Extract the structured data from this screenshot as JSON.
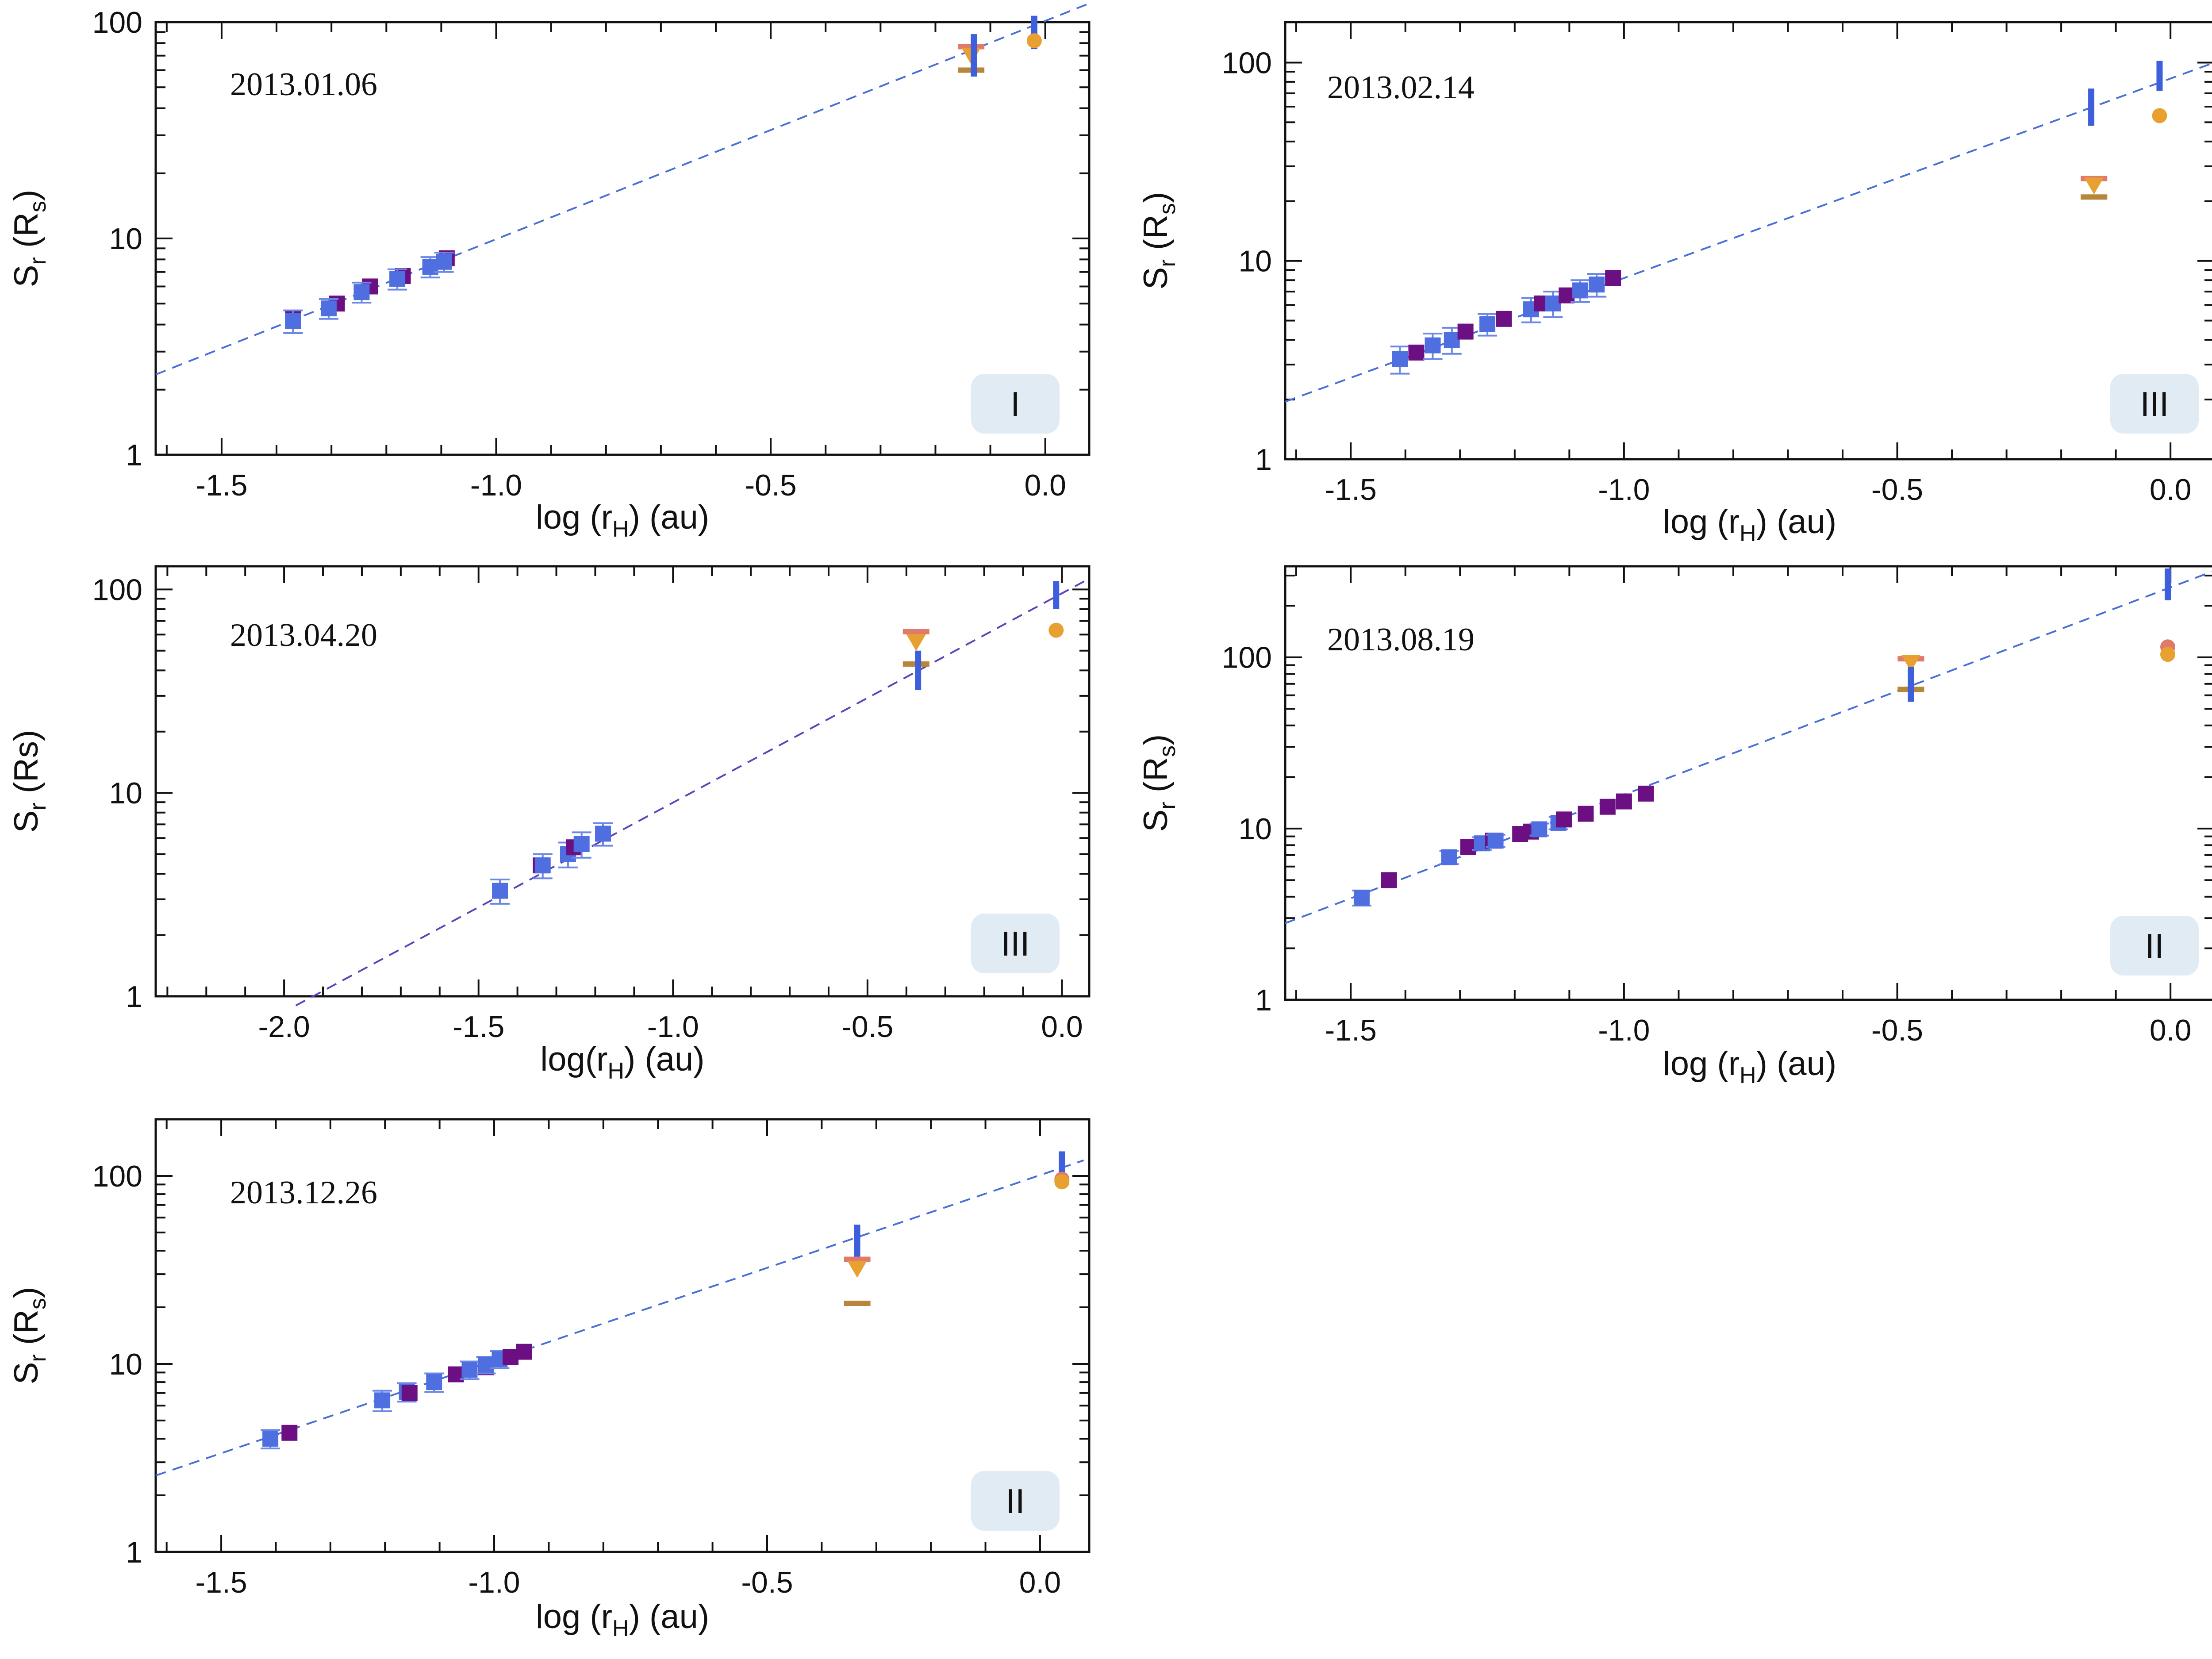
{
  "colors": {
    "fit": "#4a6fd6",
    "fit_dark": "#5b46b8",
    "blue_square": "#4f6fe0",
    "purple_square": "#6b0f82",
    "error_bar": "#6b88e6",
    "vertical_bar": "#3e5fdc",
    "orange": "#e8a030",
    "salmon": "#e07a6a",
    "brown": "#b8863a",
    "badge_bg": "#e1ebf4"
  },
  "chart_data": [
    {
      "type": "scatter",
      "id": "p1",
      "title": "2013.01.06",
      "badge": "I",
      "xlabel": "log (r",
      "xlabel_sub": "H",
      "xlabel_tail": ") (au)",
      "ylabel": "S",
      "ylabel_sub": "r",
      "ylabel_tail": " (R",
      "ylabel_sub2": "s",
      "ylabel_end": ")",
      "xlim": [
        -1.62,
        0.08
      ],
      "ylim": [
        1,
        100
      ],
      "yscale": "log",
      "xticks": [
        {
          "v": -1.5,
          "label": "-1.5"
        },
        {
          "v": -1.0,
          "label": "-1.0"
        },
        {
          "v": -0.5,
          "label": "-0.5"
        },
        {
          "v": 0.0,
          "label": "0.0"
        }
      ],
      "yticks": [
        {
          "v": 1,
          "label": "1"
        },
        {
          "v": 10,
          "label": "10"
        },
        {
          "v": 100,
          "label": "100"
        }
      ],
      "fit": {
        "x": [
          -1.62,
          0.08
        ],
        "y": [
          2.35,
          122
        ],
        "style": "light"
      },
      "points": [
        {
          "kind": "purple-square",
          "x": -1.37,
          "y": 4.3
        },
        {
          "kind": "blue-square",
          "x": -1.37,
          "y": 4.15,
          "err": 0.5
        },
        {
          "kind": "purple-square",
          "x": -1.29,
          "y": 5.0
        },
        {
          "kind": "blue-square",
          "x": -1.305,
          "y": 4.75,
          "err": 0.5
        },
        {
          "kind": "purple-square",
          "x": -1.23,
          "y": 6.0
        },
        {
          "kind": "blue-square",
          "x": -1.245,
          "y": 5.65,
          "err": 0.6
        },
        {
          "kind": "purple-square",
          "x": -1.17,
          "y": 6.7
        },
        {
          "kind": "blue-square",
          "x": -1.18,
          "y": 6.5,
          "err": 0.7
        },
        {
          "kind": "purple-square",
          "x": -1.09,
          "y": 8.1
        },
        {
          "kind": "blue-square",
          "x": -1.12,
          "y": 7.4,
          "err": 0.8
        },
        {
          "kind": "blue-square",
          "x": -1.095,
          "y": 7.8,
          "err": 0.8
        },
        {
          "kind": "salmon-bar",
          "x": -0.135,
          "y": 77
        },
        {
          "kind": "orange-down",
          "x": -0.135,
          "y": 70
        },
        {
          "kind": "brown-bar",
          "x": -0.135,
          "y": 60
        },
        {
          "kind": "vbar",
          "x": -0.13,
          "y0": 56,
          "y1": 88
        },
        {
          "kind": "vbar",
          "x": -0.02,
          "y0": 75,
          "y1": 107
        },
        {
          "kind": "orange-dot",
          "x": -0.02,
          "y": 82
        }
      ]
    },
    {
      "type": "scatter",
      "id": "p2",
      "title": "2013.02.14",
      "badge": "III",
      "xlabel": "log (r",
      "xlabel_sub": "H",
      "xlabel_tail": ") (au)",
      "ylabel": "S",
      "ylabel_sub": "r",
      "ylabel_tail": " (R",
      "ylabel_sub2": "s",
      "ylabel_end": ")",
      "xlim": [
        -1.62,
        0.08
      ],
      "ylim": [
        1,
        160
      ],
      "yscale": "log",
      "xticks": [
        {
          "v": -1.5,
          "label": "-1.5"
        },
        {
          "v": -1.0,
          "label": "-1.0"
        },
        {
          "v": -0.5,
          "label": "-0.5"
        },
        {
          "v": 0.0,
          "label": "0.0"
        }
      ],
      "yticks": [
        {
          "v": 1,
          "label": "1"
        },
        {
          "v": 10,
          "label": "10"
        },
        {
          "v": 100,
          "label": "100"
        }
      ],
      "fit": {
        "x": [
          -1.62,
          0.08
        ],
        "y": [
          1.95,
          100
        ],
        "style": "light"
      },
      "points": [
        {
          "kind": "blue-square",
          "x": -1.41,
          "y": 3.2,
          "err": 0.5
        },
        {
          "kind": "purple-square",
          "x": -1.38,
          "y": 3.45
        },
        {
          "kind": "blue-square",
          "x": -1.35,
          "y": 3.75,
          "err": 0.55
        },
        {
          "kind": "blue-square",
          "x": -1.315,
          "y": 4.0,
          "err": 0.6
        },
        {
          "kind": "purple-square",
          "x": -1.29,
          "y": 4.4
        },
        {
          "kind": "blue-square",
          "x": -1.25,
          "y": 4.8,
          "err": 0.6
        },
        {
          "kind": "purple-square",
          "x": -1.22,
          "y": 5.1
        },
        {
          "kind": "blue-square",
          "x": -1.17,
          "y": 5.7,
          "err": 0.8
        },
        {
          "kind": "purple-square",
          "x": -1.15,
          "y": 6.1
        },
        {
          "kind": "blue-square",
          "x": -1.13,
          "y": 6.1,
          "err": 0.9
        },
        {
          "kind": "purple-square",
          "x": -1.105,
          "y": 6.7
        },
        {
          "kind": "blue-square",
          "x": -1.08,
          "y": 7.1,
          "err": 0.9
        },
        {
          "kind": "blue-square",
          "x": -1.05,
          "y": 7.6,
          "err": 1.0
        },
        {
          "kind": "purple-square",
          "x": -1.02,
          "y": 8.2
        },
        {
          "kind": "vbar",
          "x": -0.145,
          "y0": 48,
          "y1": 74
        },
        {
          "kind": "salmon-bar",
          "x": -0.14,
          "y": 26
        },
        {
          "kind": "orange-down",
          "x": -0.14,
          "y": 24
        },
        {
          "kind": "brown-bar",
          "x": -0.14,
          "y": 21
        },
        {
          "kind": "vbar",
          "x": -0.02,
          "y0": 72,
          "y1": 102
        },
        {
          "kind": "orange-dot",
          "x": -0.02,
          "y": 54
        }
      ]
    },
    {
      "type": "scatter",
      "id": "p3",
      "title": "2013.04.20",
      "badge": "III",
      "xlabel": "log(r",
      "xlabel_sub": "H",
      "xlabel_tail": ") (au)",
      "ylabel": "S",
      "ylabel_sub": "r",
      "ylabel_tail": " (Rs)",
      "ylabel_sub2": "",
      "ylabel_end": "",
      "xlim": [
        -2.33,
        0.07
      ],
      "ylim": [
        1,
        130
      ],
      "yscale": "log",
      "xticks": [
        {
          "v": -2.0,
          "label": "-2.0"
        },
        {
          "v": -1.5,
          "label": "-1.5"
        },
        {
          "v": -1.0,
          "label": "-1.0"
        },
        {
          "v": -0.5,
          "label": "-0.5"
        },
        {
          "v": 0.0,
          "label": "0.0"
        }
      ],
      "yticks": [
        {
          "v": 1,
          "label": "1"
        },
        {
          "v": 10,
          "label": "10"
        },
        {
          "v": 100,
          "label": "100"
        }
      ],
      "fit": {
        "x": [
          -1.97,
          0.07
        ],
        "y": [
          0.9,
          113
        ],
        "style": "dark"
      },
      "points": [
        {
          "kind": "blue-square",
          "x": -1.445,
          "y": 3.3,
          "err": 0.45
        },
        {
          "kind": "purple-square",
          "x": -1.34,
          "y": 4.4
        },
        {
          "kind": "blue-square",
          "x": -1.335,
          "y": 4.4,
          "err": 0.6
        },
        {
          "kind": "blue-square",
          "x": -1.27,
          "y": 5.0,
          "err": 0.7
        },
        {
          "kind": "purple-square",
          "x": -1.255,
          "y": 5.4
        },
        {
          "kind": "blue-square",
          "x": -1.235,
          "y": 5.6,
          "err": 0.8
        },
        {
          "kind": "blue-square",
          "x": -1.18,
          "y": 6.3,
          "err": 0.8
        },
        {
          "kind": "salmon-bar",
          "x": -0.375,
          "y": 62
        },
        {
          "kind": "orange-down",
          "x": -0.375,
          "y": 55
        },
        {
          "kind": "brown-bar",
          "x": -0.375,
          "y": 43
        },
        {
          "kind": "vbar",
          "x": -0.37,
          "y0": 32,
          "y1": 50
        },
        {
          "kind": "vbar",
          "x": -0.015,
          "y0": 80,
          "y1": 110
        },
        {
          "kind": "orange-dot",
          "x": -0.015,
          "y": 63
        }
      ]
    },
    {
      "type": "scatter",
      "id": "p4",
      "title": "2013.08.19",
      "badge": "II",
      "xlabel": "log (r",
      "xlabel_sub": "H",
      "xlabel_tail": ") (au)",
      "ylabel": "S",
      "ylabel_sub": "r",
      "ylabel_tail": " (R",
      "ylabel_sub2": "s",
      "ylabel_end": ")",
      "xlim": [
        -1.62,
        0.08
      ],
      "ylim": [
        1,
        340
      ],
      "yscale": "log",
      "xticks": [
        {
          "v": -1.5,
          "label": "-1.5"
        },
        {
          "v": -1.0,
          "label": "-1.0"
        },
        {
          "v": -0.5,
          "label": "-0.5"
        },
        {
          "v": 0.0,
          "label": "0.0"
        }
      ],
      "yticks": [
        {
          "v": 1,
          "label": "1"
        },
        {
          "v": 10,
          "label": "10"
        },
        {
          "v": 100,
          "label": "100"
        }
      ],
      "fit": {
        "x": [
          -1.62,
          0.08
        ],
        "y": [
          2.8,
          320
        ],
        "style": "light"
      },
      "points": [
        {
          "kind": "blue-square",
          "x": -1.48,
          "y": 3.95,
          "err": 0.4
        },
        {
          "kind": "purple-square",
          "x": -1.43,
          "y": 5.0
        },
        {
          "kind": "blue-square",
          "x": -1.32,
          "y": 6.8,
          "err": 0.6
        },
        {
          "kind": "purple-square",
          "x": -1.285,
          "y": 7.8
        },
        {
          "kind": "blue-square",
          "x": -1.26,
          "y": 8.2,
          "err": 0.7
        },
        {
          "kind": "purple-square",
          "x": -1.24,
          "y": 8.5
        },
        {
          "kind": "blue-square",
          "x": -1.235,
          "y": 8.5,
          "err": 0.7
        },
        {
          "kind": "purple-square",
          "x": -1.19,
          "y": 9.3
        },
        {
          "kind": "purple-square",
          "x": -1.17,
          "y": 9.6
        },
        {
          "kind": "blue-square",
          "x": -1.155,
          "y": 9.9,
          "err": 0.8
        },
        {
          "kind": "blue-square",
          "x": -1.12,
          "y": 10.8,
          "err": 0.9
        },
        {
          "kind": "purple-square",
          "x": -1.11,
          "y": 11.3
        },
        {
          "kind": "purple-square",
          "x": -1.07,
          "y": 12.2
        },
        {
          "kind": "purple-square",
          "x": -1.03,
          "y": 13.4
        },
        {
          "kind": "purple-square",
          "x": -1.0,
          "y": 14.4
        },
        {
          "kind": "purple-square",
          "x": -0.96,
          "y": 16.0
        },
        {
          "kind": "salmon-bar",
          "x": -0.475,
          "y": 98
        },
        {
          "kind": "orange-down",
          "x": -0.475,
          "y": 93
        },
        {
          "kind": "brown-bar",
          "x": -0.475,
          "y": 65
        },
        {
          "kind": "vbar",
          "x": -0.475,
          "y0": 55,
          "y1": 88
        },
        {
          "kind": "vbar",
          "x": -0.005,
          "y0": 215,
          "y1": 330
        },
        {
          "kind": "salmon-dot",
          "x": -0.005,
          "y": 115
        },
        {
          "kind": "orange-dot",
          "x": -0.005,
          "y": 104
        }
      ]
    },
    {
      "type": "scatter",
      "id": "p5",
      "title": "2013.12.26",
      "badge": "II",
      "xlabel": "log (r",
      "xlabel_sub": "H",
      "xlabel_tail": ") (au)",
      "ylabel": "S",
      "ylabel_sub": "r",
      "ylabel_tail": " (R",
      "ylabel_sub2": "s",
      "ylabel_end": ")",
      "xlim": [
        -1.62,
        0.09
      ],
      "ylim": [
        1,
        200
      ],
      "yscale": "log",
      "xticks": [
        {
          "v": -1.5,
          "label": "-1.5"
        },
        {
          "v": -1.0,
          "label": "-1.0"
        },
        {
          "v": -0.5,
          "label": "-0.5"
        },
        {
          "v": 0.0,
          "label": "0.0"
        }
      ],
      "yticks": [
        {
          "v": 1,
          "label": "1"
        },
        {
          "v": 10,
          "label": "10"
        },
        {
          "v": 100,
          "label": "100"
        }
      ],
      "fit": {
        "x": [
          -1.62,
          0.08
        ],
        "y": [
          2.55,
          121
        ],
        "style": "light"
      },
      "points": [
        {
          "kind": "blue-square",
          "x": -1.41,
          "y": 4.0,
          "err": 0.45
        },
        {
          "kind": "purple-square",
          "x": -1.375,
          "y": 4.3
        },
        {
          "kind": "blue-square",
          "x": -1.205,
          "y": 6.4,
          "err": 0.8
        },
        {
          "kind": "blue-square",
          "x": -1.16,
          "y": 7.1,
          "err": 0.8
        },
        {
          "kind": "purple-square",
          "x": -1.155,
          "y": 7.0
        },
        {
          "kind": "blue-square",
          "x": -1.11,
          "y": 8.0,
          "err": 0.9
        },
        {
          "kind": "purple-square",
          "x": -1.07,
          "y": 8.8
        },
        {
          "kind": "blue-square",
          "x": -1.045,
          "y": 9.3,
          "err": 1.0
        },
        {
          "kind": "purple-square",
          "x": -1.015,
          "y": 9.6
        },
        {
          "kind": "blue-square",
          "x": -1.015,
          "y": 9.9,
          "err": 1.0
        },
        {
          "kind": "blue-square",
          "x": -0.99,
          "y": 10.6,
          "err": 1.1
        },
        {
          "kind": "purple-square",
          "x": -0.97,
          "y": 10.9
        },
        {
          "kind": "purple-square",
          "x": -0.945,
          "y": 11.6
        },
        {
          "kind": "vbar",
          "x": -0.335,
          "y0": 34,
          "y1": 55
        },
        {
          "kind": "salmon-bar",
          "x": -0.335,
          "y": 36
        },
        {
          "kind": "orange-down",
          "x": -0.335,
          "y": 32
        },
        {
          "kind": "brown-bar",
          "x": -0.335,
          "y": 21
        },
        {
          "kind": "vbar",
          "x": 0.04,
          "y0": 90,
          "y1": 135
        },
        {
          "kind": "salmon-dot",
          "x": 0.04,
          "y": 96
        },
        {
          "kind": "orange-dot",
          "x": 0.04,
          "y": 93
        }
      ]
    }
  ]
}
